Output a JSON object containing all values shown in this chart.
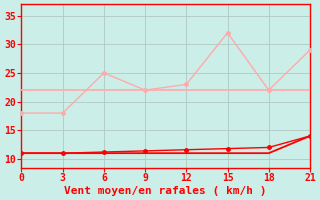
{
  "x": [
    0,
    3,
    6,
    9,
    12,
    15,
    18,
    21
  ],
  "gusts_y": [
    18,
    18,
    25,
    22,
    23,
    32,
    22,
    29
  ],
  "mean_wind_flat_y": [
    22,
    22,
    22,
    22,
    22,
    22,
    22,
    22
  ],
  "mean_wind_rise_y": [
    11,
    11,
    11,
    11,
    11,
    11,
    11,
    14
  ],
  "gusts_flat_y": [
    11,
    11,
    11.2,
    11.4,
    11.6,
    11.8,
    12,
    14
  ],
  "xlabel": "Vent moyen/en rafales ( km/h )",
  "yticks": [
    10,
    15,
    20,
    25,
    30,
    35
  ],
  "xticks": [
    0,
    3,
    6,
    9,
    12,
    15,
    18,
    21
  ],
  "xlim": [
    0,
    21
  ],
  "ylim": [
    8.5,
    37
  ],
  "bg_color": "#cceee8",
  "pink_color": "#ffaaaa",
  "red_color": "#ff0000",
  "grid_color": "#b0c8c4",
  "axis_color": "#ff0000",
  "xlabel_color": "#ff0000",
  "tick_color": "#ff0000",
  "tick_fontsize": 7,
  "xlabel_fontsize": 8
}
